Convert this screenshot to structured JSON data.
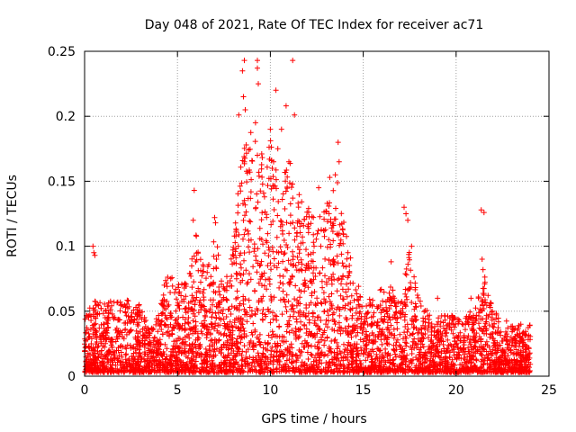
{
  "chart_data": {
    "type": "scatter",
    "title": "Day 048 of 2021, Rate Of TEC Index for receiver ac71",
    "xlabel": "GPS time / hours",
    "ylabel": "ROTI / TECUs",
    "xlim": [
      0,
      25
    ],
    "ylim": [
      0,
      0.25
    ],
    "x_ticks": [
      "0",
      "5",
      "10",
      "15",
      "20",
      "25"
    ],
    "y_ticks": [
      "0",
      "0.05",
      "0.1",
      "0.15",
      "0.2",
      "0.25"
    ],
    "grid": true,
    "marker": "+",
    "color": "#ff0000",
    "x_extent": [
      0,
      24
    ],
    "envelope": [
      [
        0.0,
        0.045
      ],
      [
        0.5,
        0.06
      ],
      [
        1.0,
        0.055
      ],
      [
        1.5,
        0.06
      ],
      [
        2.0,
        0.06
      ],
      [
        2.5,
        0.06
      ],
      [
        3.0,
        0.055
      ],
      [
        3.5,
        0.035
      ],
      [
        4.0,
        0.05
      ],
      [
        4.5,
        0.085
      ],
      [
        5.0,
        0.07
      ],
      [
        5.5,
        0.075
      ],
      [
        6.0,
        0.11
      ],
      [
        6.5,
        0.08
      ],
      [
        7.0,
        0.11
      ],
      [
        7.5,
        0.075
      ],
      [
        8.0,
        0.1
      ],
      [
        8.5,
        0.18
      ],
      [
        9.0,
        0.19
      ],
      [
        9.5,
        0.17
      ],
      [
        10.0,
        0.19
      ],
      [
        10.5,
        0.15
      ],
      [
        11.0,
        0.17
      ],
      [
        11.5,
        0.14
      ],
      [
        12.0,
        0.14
      ],
      [
        12.5,
        0.12
      ],
      [
        13.0,
        0.13
      ],
      [
        13.5,
        0.16
      ],
      [
        14.0,
        0.12
      ],
      [
        14.5,
        0.075
      ],
      [
        15.0,
        0.065
      ],
      [
        15.5,
        0.06
      ],
      [
        16.0,
        0.07
      ],
      [
        16.5,
        0.07
      ],
      [
        17.0,
        0.06
      ],
      [
        17.5,
        0.1
      ],
      [
        18.0,
        0.06
      ],
      [
        18.5,
        0.05
      ],
      [
        19.0,
        0.045
      ],
      [
        19.5,
        0.05
      ],
      [
        20.0,
        0.045
      ],
      [
        20.5,
        0.045
      ],
      [
        21.0,
        0.055
      ],
      [
        21.5,
        0.08
      ],
      [
        22.0,
        0.05
      ],
      [
        22.5,
        0.045
      ],
      [
        23.0,
        0.04
      ],
      [
        23.5,
        0.04
      ],
      [
        24.0,
        0.04
      ]
    ],
    "outliers": [
      [
        0.45,
        0.1
      ],
      [
        0.5,
        0.095
      ],
      [
        0.55,
        0.093
      ],
      [
        5.9,
        0.143
      ],
      [
        5.85,
        0.12
      ],
      [
        7.0,
        0.122
      ],
      [
        7.05,
        0.118
      ],
      [
        7.1,
        0.09
      ],
      [
        8.6,
        0.243
      ],
      [
        8.5,
        0.235
      ],
      [
        8.55,
        0.215
      ],
      [
        8.3,
        0.201
      ],
      [
        8.65,
        0.205
      ],
      [
        8.6,
        0.165
      ],
      [
        8.7,
        0.178
      ],
      [
        9.3,
        0.243
      ],
      [
        9.3,
        0.237
      ],
      [
        9.35,
        0.225
      ],
      [
        9.2,
        0.195
      ],
      [
        9.3,
        0.17
      ],
      [
        8.9,
        0.157
      ],
      [
        10.3,
        0.22
      ],
      [
        10.85,
        0.208
      ],
      [
        11.2,
        0.243
      ],
      [
        11.3,
        0.201
      ],
      [
        10.6,
        0.19
      ],
      [
        10.0,
        0.19
      ],
      [
        9.95,
        0.167
      ],
      [
        10.1,
        0.16
      ],
      [
        10.4,
        0.175
      ],
      [
        11.0,
        0.165
      ],
      [
        13.2,
        0.153
      ],
      [
        13.5,
        0.155
      ],
      [
        13.65,
        0.18
      ],
      [
        13.7,
        0.165
      ],
      [
        12.6,
        0.145
      ],
      [
        17.2,
        0.13
      ],
      [
        17.3,
        0.125
      ],
      [
        17.4,
        0.12
      ],
      [
        17.6,
        0.1
      ],
      [
        21.35,
        0.128
      ],
      [
        21.5,
        0.126
      ],
      [
        21.4,
        0.09
      ],
      [
        21.45,
        0.082
      ],
      [
        16.5,
        0.088
      ],
      [
        19.0,
        0.06
      ],
      [
        20.8,
        0.06
      ]
    ]
  }
}
